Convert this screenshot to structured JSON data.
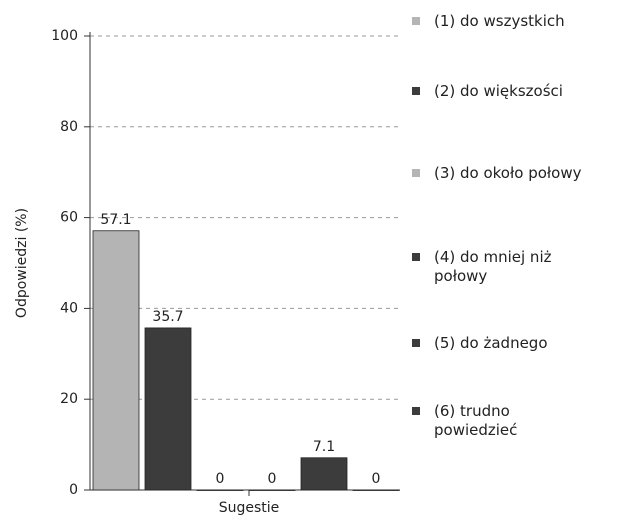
{
  "chart_data": {
    "type": "bar",
    "categories": [
      "Sugestie"
    ],
    "y_label": "Odpowiedzi (%)",
    "series": [
      {
        "name": "(1) do wszystkich",
        "color": "#b4b4b4",
        "values": [
          57.1
        ]
      },
      {
        "name": "(2) do większości",
        "color": "#3c3c3c",
        "values": [
          35.7
        ]
      },
      {
        "name": "(3) do około połowy",
        "color": "#b4b4b4",
        "values": [
          0
        ]
      },
      {
        "name": "(4) do mniej niż połowy",
        "color": "#3c3c3c",
        "values": [
          0
        ]
      },
      {
        "name": "(5) do żadnego",
        "color": "#3c3c3c",
        "values": [
          7.1
        ]
      },
      {
        "name": "(6) trudno powiedzieć",
        "color": "#3c3c3c",
        "values": [
          0
        ]
      }
    ],
    "ylim": [
      0,
      100
    ],
    "yticks": [
      0,
      20,
      40,
      60,
      80,
      100
    ],
    "grid": true,
    "legend": "right"
  }
}
